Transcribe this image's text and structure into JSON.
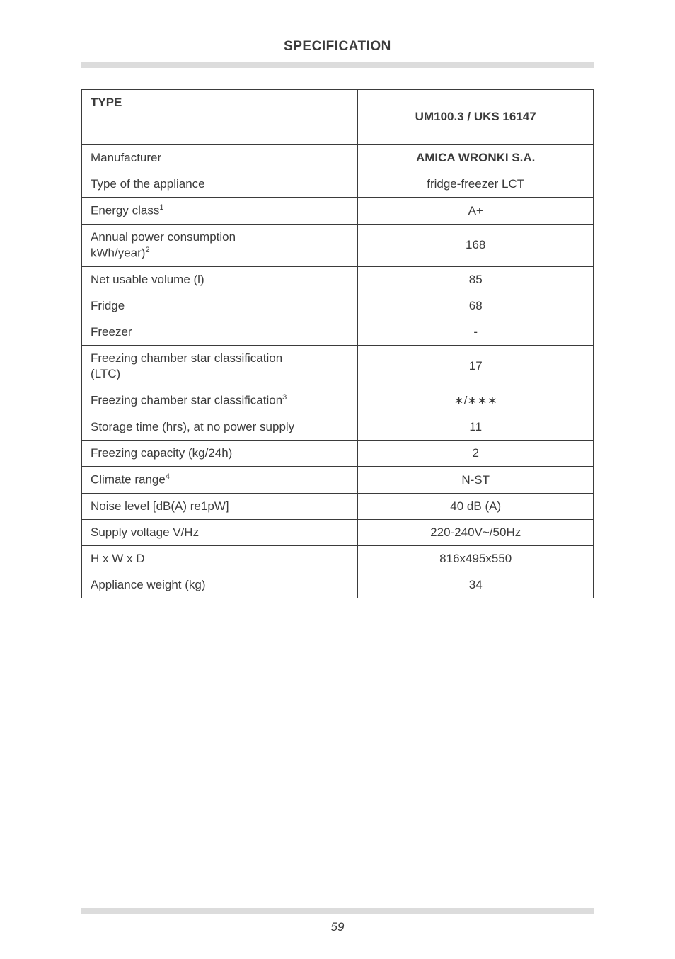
{
  "title": "SPECIFICATION",
  "page_number": "59",
  "colors": {
    "text": "#3b3b3b",
    "border": "#3b3b3b",
    "gray_bar": "#dcdcdc",
    "background": "#ffffff"
  },
  "typography": {
    "title_fontsize": 19,
    "cell_fontsize": 17,
    "sup_fontsize": 11,
    "pagenum_fontsize": 17,
    "font_family": "Arial"
  },
  "table": {
    "header_left": "TYPE",
    "header_right": "UM100.3 / UKS 16147",
    "rows": [
      {
        "label": "Manufacturer",
        "sup": "",
        "value": "AMICA WRONKI S.A.",
        "bold_value": true
      },
      {
        "label": "Type of the appliance",
        "sup": "",
        "value": "fridge-freezer LCT",
        "bold_value": false
      },
      {
        "label": "Energy class",
        "sup": "1",
        "value": "A+",
        "bold_value": false
      },
      {
        "label": "Annual power consumption kWh/year)",
        "sup": "2",
        "value": "168",
        "bold_value": false,
        "multiline": true,
        "line1": "Annual power consumption",
        "line2": "kWh/year)"
      },
      {
        "label": "Net usable volume (l)",
        "sup": "",
        "value": "85",
        "bold_value": false
      },
      {
        "label": "Fridge",
        "sup": "",
        "value": "68",
        "bold_value": false
      },
      {
        "label": "Freezer",
        "sup": "",
        "value": "-",
        "bold_value": false
      },
      {
        "label": "Freezing chamber star classification (LTC)",
        "sup": "",
        "value": "17",
        "bold_value": false,
        "multiline": true,
        "line1": "Freezing chamber star classification",
        "line2": "(LTC)"
      },
      {
        "label": "Freezing chamber star classification",
        "sup": "3",
        "value": "∗/∗∗∗",
        "bold_value": false
      },
      {
        "label": "Storage time (hrs), at no power supply",
        "sup": "",
        "value": "11",
        "bold_value": false
      },
      {
        "label": "Freezing capacity (kg/24h)",
        "sup": "",
        "value": "2",
        "bold_value": false
      },
      {
        "label": "Climate range",
        "sup": "4",
        "value": "N-ST",
        "bold_value": false
      },
      {
        "label": "Noise level [dB(A) re1pW]",
        "sup": "",
        "value": "40 dB (A)",
        "bold_value": false
      },
      {
        "label": "Supply voltage V/Hz",
        "sup": "",
        "value": "220-240V~/50Hz",
        "bold_value": false
      },
      {
        "label": "H x W x D",
        "sup": "",
        "value": "816x495x550",
        "bold_value": false
      },
      {
        "label": "Appliance weight (kg)",
        "sup": "",
        "value": "34",
        "bold_value": false
      }
    ]
  }
}
